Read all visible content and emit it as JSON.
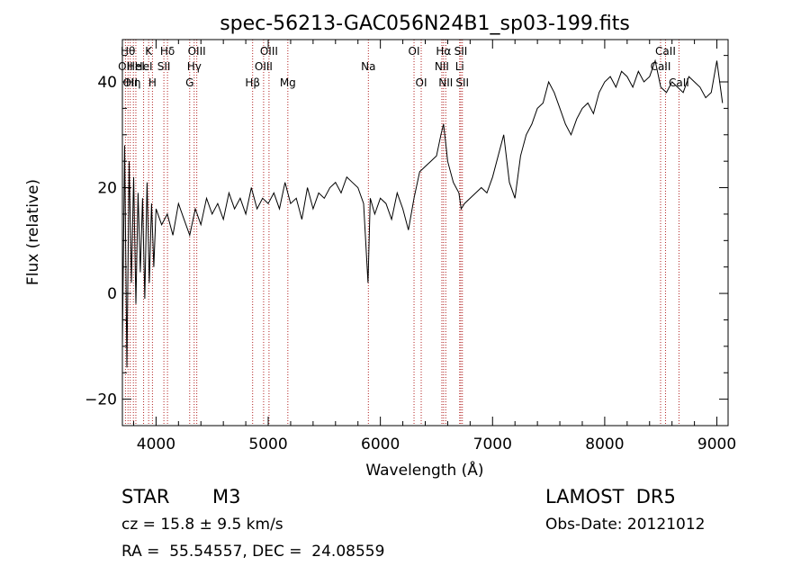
{
  "chart_data": {
    "type": "line",
    "title": "spec-56213-GAC056N24B1_sp03-199.fits",
    "xlabel": "Wavelength (Å)",
    "ylabel": "Flux (relative)",
    "xlim": [
      3700,
      9100
    ],
    "ylim": [
      -25,
      48
    ],
    "xticks": [
      4000,
      5000,
      6000,
      7000,
      8000,
      9000
    ],
    "yticks": [
      -20,
      0,
      20,
      40
    ],
    "grid": false,
    "line_color": "#000000",
    "marker_color": "#b22222",
    "series": [
      {
        "x": [
          3700,
          3720,
          3740,
          3760,
          3780,
          3800,
          3820,
          3840,
          3860,
          3880,
          3900,
          3920,
          3940,
          3960,
          3980,
          4000,
          4050,
          4100,
          4150,
          4200,
          4250,
          4300,
          4350,
          4400,
          4450,
          4500,
          4550,
          4600,
          4650,
          4700,
          4750,
          4800,
          4850,
          4900,
          4950,
          5000,
          5050,
          5100,
          5150,
          5200,
          5250,
          5300,
          5350,
          5400,
          5450,
          5500,
          5550,
          5600,
          5650,
          5700,
          5750,
          5800,
          5850,
          5890,
          5910,
          5950,
          6000,
          6050,
          6100,
          6150,
          6200,
          6250,
          6300,
          6350,
          6400,
          6450,
          6500,
          6540,
          6563,
          6580,
          6600,
          6650,
          6700,
          6720,
          6750,
          6800,
          6850,
          6900,
          6950,
          7000,
          7050,
          7100,
          7150,
          7200,
          7250,
          7300,
          7350,
          7400,
          7450,
          7500,
          7550,
          7600,
          7650,
          7700,
          7750,
          7800,
          7850,
          7900,
          7950,
          8000,
          8050,
          8100,
          8150,
          8200,
          8250,
          8300,
          8350,
          8400,
          8450,
          8500,
          8550,
          8600,
          8650,
          8700,
          8750,
          8800,
          8850,
          8900,
          8950,
          9000,
          9050
        ],
        "y": [
          -10,
          28,
          -14,
          25,
          2,
          22,
          -2,
          19,
          4,
          18,
          -1,
          21,
          2,
          17,
          5,
          16,
          13,
          15,
          11,
          17,
          14,
          11,
          16,
          13,
          18,
          15,
          17,
          14,
          19,
          16,
          18,
          15,
          20,
          16,
          18,
          17,
          19,
          16,
          21,
          17,
          18,
          14,
          20,
          16,
          19,
          18,
          20,
          21,
          19,
          22,
          21,
          20,
          17,
          2,
          18,
          15,
          18,
          17,
          14,
          19,
          16,
          12,
          18,
          23,
          24,
          25,
          26,
          30,
          32,
          29,
          25,
          21,
          19,
          16,
          17,
          18,
          19,
          20,
          19,
          22,
          26,
          30,
          21,
          18,
          26,
          30,
          32,
          35,
          36,
          40,
          38,
          35,
          32,
          30,
          33,
          35,
          36,
          34,
          38,
          40,
          41,
          39,
          42,
          41,
          39,
          42,
          40,
          41,
          44,
          39,
          38,
          40,
          39,
          38,
          41,
          40,
          39,
          37,
          38,
          44,
          36
        ]
      }
    ],
    "lines": [
      {
        "wavelength": 3727,
        "label": "OII",
        "row": 2
      },
      {
        "wavelength": 3750,
        "label": "Hθ",
        "row": 1
      },
      {
        "wavelength": 3770,
        "label": "OII",
        "row": 3
      },
      {
        "wavelength": 3798,
        "label": "Hη",
        "row": 3
      },
      {
        "wavelength": 3820,
        "label": "HeI",
        "row": 2
      },
      {
        "wavelength": 3889,
        "label": "HeI",
        "row": 2
      },
      {
        "wavelength": 3934,
        "label": "K",
        "row": 1
      },
      {
        "wavelength": 3968,
        "label": "H",
        "row": 3
      },
      {
        "wavelength": 4070,
        "label": "SII",
        "row": 2
      },
      {
        "wavelength": 4102,
        "label": "Hδ",
        "row": 1
      },
      {
        "wavelength": 4300,
        "label": "G",
        "row": 3
      },
      {
        "wavelength": 4340,
        "label": "Hγ",
        "row": 2
      },
      {
        "wavelength": 4363,
        "label": "OIII",
        "row": 1
      },
      {
        "wavelength": 4861,
        "label": "Hβ",
        "row": 3
      },
      {
        "wavelength": 4959,
        "label": "OIII",
        "row": 2
      },
      {
        "wavelength": 5007,
        "label": "OIII",
        "row": 1
      },
      {
        "wavelength": 5175,
        "label": "Mg",
        "row": 3
      },
      {
        "wavelength": 5893,
        "label": "Na",
        "row": 2
      },
      {
        "wavelength": 6300,
        "label": "OI",
        "row": 1
      },
      {
        "wavelength": 6364,
        "label": "OI",
        "row": 3
      },
      {
        "wavelength": 6548,
        "label": "NII",
        "row": 2
      },
      {
        "wavelength": 6563,
        "label": "Hα",
        "row": 1
      },
      {
        "wavelength": 6583,
        "label": "NII",
        "row": 3
      },
      {
        "wavelength": 6707,
        "label": "Li",
        "row": 2
      },
      {
        "wavelength": 6717,
        "label": "SII",
        "row": 1
      },
      {
        "wavelength": 6731,
        "label": "SII",
        "row": 3
      },
      {
        "wavelength": 8498,
        "label": "CaII",
        "row": 2
      },
      {
        "wavelength": 8542,
        "label": "CaII",
        "row": 1
      },
      {
        "wavelength": 8662,
        "label": "CaII",
        "row": 3
      }
    ]
  },
  "info": {
    "object_class": "STAR",
    "subclass": "M3",
    "survey": "LAMOST  DR5",
    "cz_text": "cz = 15.8 ± 9.5 km/s",
    "obs_date": "Obs-Date: 20121012",
    "coords": "RA =  55.54557, DEC =  24.08559"
  }
}
